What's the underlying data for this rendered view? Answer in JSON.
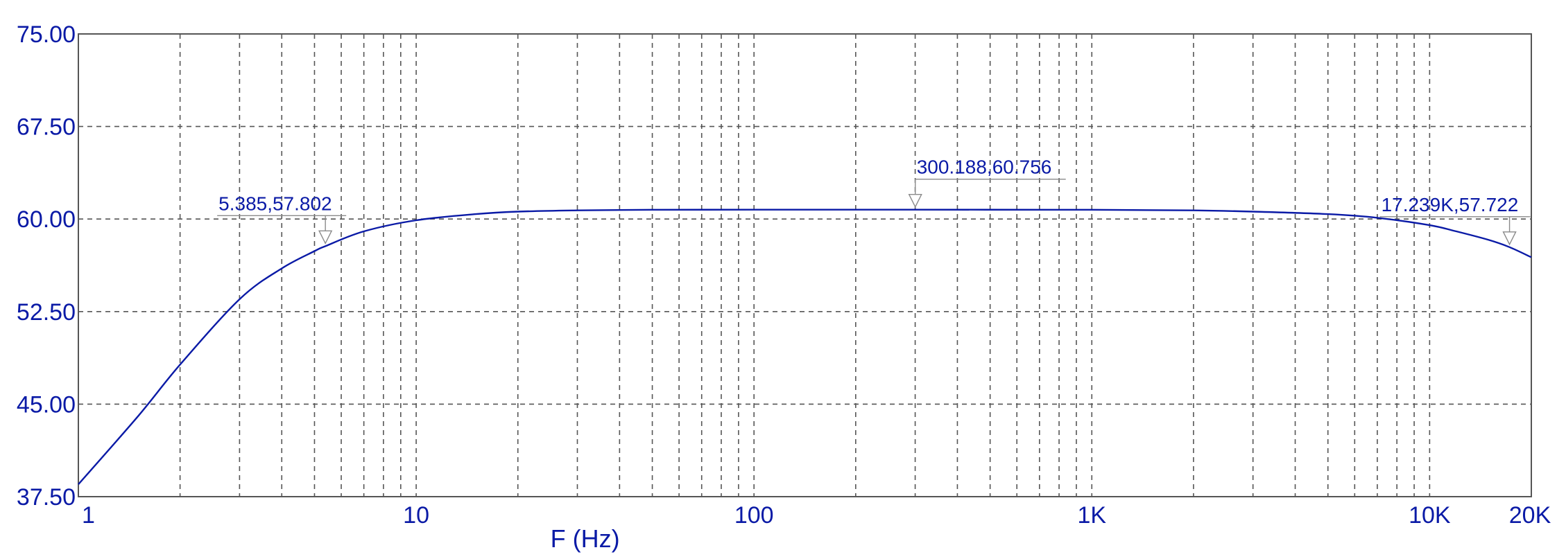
{
  "chart_data": {
    "type": "line",
    "xlabel": "F (Hz)",
    "ylabel": "",
    "x_scale": "log",
    "xlim": [
      1,
      20000
    ],
    "ylim": [
      37.5,
      75.0
    ],
    "grid": true,
    "y_ticks": [
      {
        "value": 37.5,
        "label": "37.50"
      },
      {
        "value": 45.0,
        "label": "45.00"
      },
      {
        "value": 52.5,
        "label": "52.50"
      },
      {
        "value": 60.0,
        "label": "60.00"
      },
      {
        "value": 67.5,
        "label": "67.50"
      },
      {
        "value": 75.0,
        "label": "75.00"
      }
    ],
    "x_ticks": [
      {
        "value": 1,
        "label": "1"
      },
      {
        "value": 10,
        "label": "10"
      },
      {
        "value": 100,
        "label": "100"
      },
      {
        "value": 1000,
        "label": "1K"
      },
      {
        "value": 10000,
        "label": "10K"
      },
      {
        "value": 20000,
        "label": "20K"
      }
    ],
    "x_minor_grid": [
      2,
      3,
      4,
      5,
      6,
      7,
      8,
      9,
      20,
      30,
      40,
      50,
      60,
      70,
      80,
      90,
      200,
      300,
      400,
      500,
      600,
      700,
      800,
      900,
      2000,
      3000,
      4000,
      5000,
      6000,
      7000,
      8000,
      9000
    ],
    "series": [
      {
        "color": "#0a1aa6",
        "points": [
          [
            1,
            38.5
          ],
          [
            1.5,
            44.0
          ],
          [
            2,
            48.2
          ],
          [
            3,
            53.5
          ],
          [
            4,
            56.0
          ],
          [
            5,
            57.4
          ],
          [
            5.385,
            57.802
          ],
          [
            7,
            59.0
          ],
          [
            10,
            59.9
          ],
          [
            15,
            60.4
          ],
          [
            20,
            60.6
          ],
          [
            30,
            60.7
          ],
          [
            50,
            60.75
          ],
          [
            100,
            60.76
          ],
          [
            300.188,
            60.756
          ],
          [
            1000,
            60.75
          ],
          [
            2000,
            60.7
          ],
          [
            3000,
            60.6
          ],
          [
            5000,
            60.4
          ],
          [
            7000,
            60.1
          ],
          [
            10000,
            59.5
          ],
          [
            12000,
            59.0
          ],
          [
            15000,
            58.3
          ],
          [
            17239,
            57.722
          ],
          [
            20000,
            56.9
          ]
        ]
      }
    ],
    "annotations": [
      {
        "text": "5.385,57.802",
        "x": 5.385,
        "y": 57.802,
        "label_side": "left"
      },
      {
        "text": "300.188,60.756",
        "x": 300.188,
        "y": 60.756,
        "label_side": "right"
      },
      {
        "text": "17.239K,57.722",
        "x": 17239,
        "y": 57.722,
        "label_side": "left"
      }
    ],
    "colors": {
      "axis_text": "#0a1aa6",
      "line": "#0a1aa6",
      "grid": "#555555",
      "frame": "#555555",
      "marker": "#8a8a8a"
    }
  }
}
